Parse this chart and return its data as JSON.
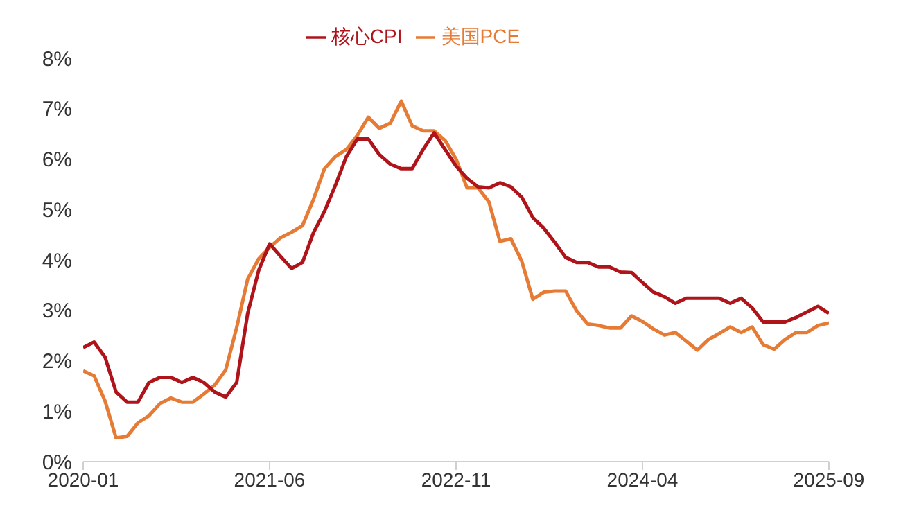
{
  "chart_data": {
    "type": "line",
    "legend": "top",
    "grid": false,
    "marker": "none",
    "line_style": "solid",
    "x": [
      "2020-01",
      "2020-02",
      "2020-03",
      "2020-04",
      "2020-05",
      "2020-06",
      "2020-07",
      "2020-08",
      "2020-09",
      "2020-10",
      "2020-11",
      "2020-12",
      "2021-01",
      "2021-02",
      "2021-03",
      "2021-04",
      "2021-05",
      "2021-06",
      "2021-07",
      "2021-08",
      "2021-09",
      "2021-10",
      "2021-11",
      "2021-12",
      "2022-01",
      "2022-02",
      "2022-03",
      "2022-04",
      "2022-05",
      "2022-06",
      "2022-07",
      "2022-08",
      "2022-09",
      "2022-10",
      "2022-11",
      "2022-12",
      "2023-01",
      "2023-02",
      "2023-03",
      "2023-04",
      "2023-05",
      "2023-06",
      "2023-07",
      "2023-08",
      "2023-09",
      "2023-10",
      "2023-11",
      "2023-12",
      "2024-01",
      "2024-02",
      "2024-03",
      "2024-04",
      "2024-05",
      "2024-06",
      "2024-07",
      "2024-08",
      "2024-09",
      "2024-10",
      "2024-11",
      "2024-12",
      "2025-01",
      "2025-02",
      "2025-03",
      "2025-04",
      "2025-05",
      "2025-06",
      "2025-07",
      "2025-08",
      "2025-09"
    ],
    "series": [
      {
        "name": "美国PCE",
        "color": "#e57b35",
        "values": [
          1.8,
          1.7,
          1.2,
          0.47,
          0.5,
          0.77,
          0.91,
          1.15,
          1.26,
          1.18,
          1.18,
          1.34,
          1.52,
          1.82,
          2.66,
          3.62,
          4.02,
          4.25,
          4.44,
          4.55,
          4.68,
          5.2,
          5.81,
          6.05,
          6.19,
          6.47,
          6.83,
          6.61,
          6.71,
          7.15,
          6.66,
          6.56,
          6.56,
          6.37,
          6.0,
          5.43,
          5.43,
          5.15,
          4.37,
          4.42,
          3.97,
          3.22,
          3.36,
          3.38,
          3.38,
          2.99,
          2.73,
          2.7,
          2.65,
          2.65,
          2.89,
          2.78,
          2.63,
          2.51,
          2.56,
          2.39,
          2.21,
          2.42,
          2.54,
          2.67,
          2.56,
          2.67,
          2.32,
          2.23,
          2.42,
          2.56,
          2.56,
          2.7,
          2.75
        ]
      },
      {
        "name": "核心CPI",
        "color": "#b0141b",
        "values": [
          2.26,
          2.37,
          2.07,
          1.38,
          1.18,
          1.18,
          1.57,
          1.67,
          1.67,
          1.57,
          1.67,
          1.57,
          1.38,
          1.28,
          1.57,
          2.94,
          3.79,
          4.32,
          4.07,
          3.83,
          3.95,
          4.54,
          4.96,
          5.48,
          6.05,
          6.4,
          6.4,
          6.09,
          5.9,
          5.81,
          5.81,
          6.19,
          6.52,
          6.19,
          5.86,
          5.62,
          5.45,
          5.43,
          5.53,
          5.45,
          5.24,
          4.84,
          4.63,
          4.35,
          4.05,
          3.95,
          3.95,
          3.86,
          3.86,
          3.76,
          3.75,
          3.55,
          3.36,
          3.27,
          3.14,
          3.24,
          3.24,
          3.24,
          3.24,
          3.14,
          3.24,
          3.05,
          2.77,
          2.77,
          2.77,
          2.86,
          2.97,
          3.08,
          2.94
        ]
      }
    ],
    "xlim": [
      "2020-01",
      "2025-09"
    ],
    "xticks": [
      "2020-01",
      "2021-06",
      "2022-11",
      "2024-04",
      "2025-09"
    ],
    "ylim": [
      0,
      8
    ],
    "yticks": [
      {
        "value": 0,
        "label": "0%"
      },
      {
        "value": 1,
        "label": "1%"
      },
      {
        "value": 2,
        "label": "2%"
      },
      {
        "value": 3,
        "label": "3%"
      },
      {
        "value": 4,
        "label": "4%"
      },
      {
        "value": 5,
        "label": "5%"
      },
      {
        "value": 6,
        "label": "6%"
      },
      {
        "value": 7,
        "label": "7%"
      },
      {
        "value": 8,
        "label": "8%"
      }
    ]
  }
}
